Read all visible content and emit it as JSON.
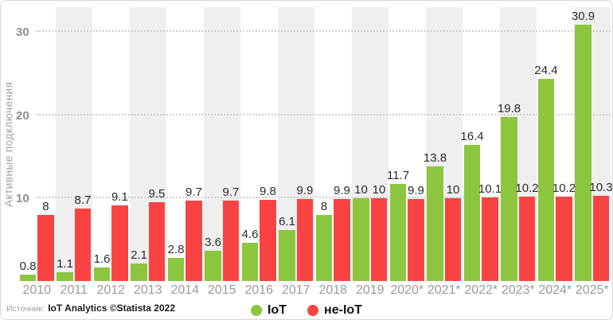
{
  "chart_data": {
    "type": "bar",
    "title": "",
    "ylabel": "Активные подключения",
    "xlabel": "",
    "categories": [
      "2010",
      "2011",
      "2012",
      "2013",
      "2014",
      "2015",
      "2016",
      "2017",
      "2018",
      "2019",
      "2020*",
      "2021*",
      "2022*",
      "2023*",
      "2024*",
      "2025*"
    ],
    "series": [
      {
        "name": "IoT",
        "color": "#8CC63F",
        "values": [
          0.8,
          1.1,
          1.6,
          2.1,
          2.8,
          3.6,
          4.6,
          6.1,
          8,
          10,
          11.7,
          13.8,
          16.4,
          19.8,
          24.4,
          30.9
        ]
      },
      {
        "name": "не-IoT",
        "color": "#F94343",
        "values": [
          8,
          8.7,
          9.1,
          9.5,
          9.7,
          9.7,
          9.8,
          9.9,
          9.9,
          10,
          9.9,
          10,
          10.1,
          10.2,
          10.2,
          10.3
        ]
      }
    ],
    "yticks": [
      10,
      20,
      30
    ],
    "ylim": [
      0,
      33
    ],
    "grid": "horizontal dotted",
    "background_bands": "alternate year columns shaded light gray",
    "legend_position": "bottom-center",
    "colors": {
      "band": "#EFEFEF",
      "gridline": "#CFCFCF",
      "axis_text": "#9A9A9A",
      "value_label": "#2B2B2B"
    }
  },
  "footer": {
    "source_prefix": "Источник:",
    "source_text": "IoT Analytics ©Statista 2022"
  }
}
